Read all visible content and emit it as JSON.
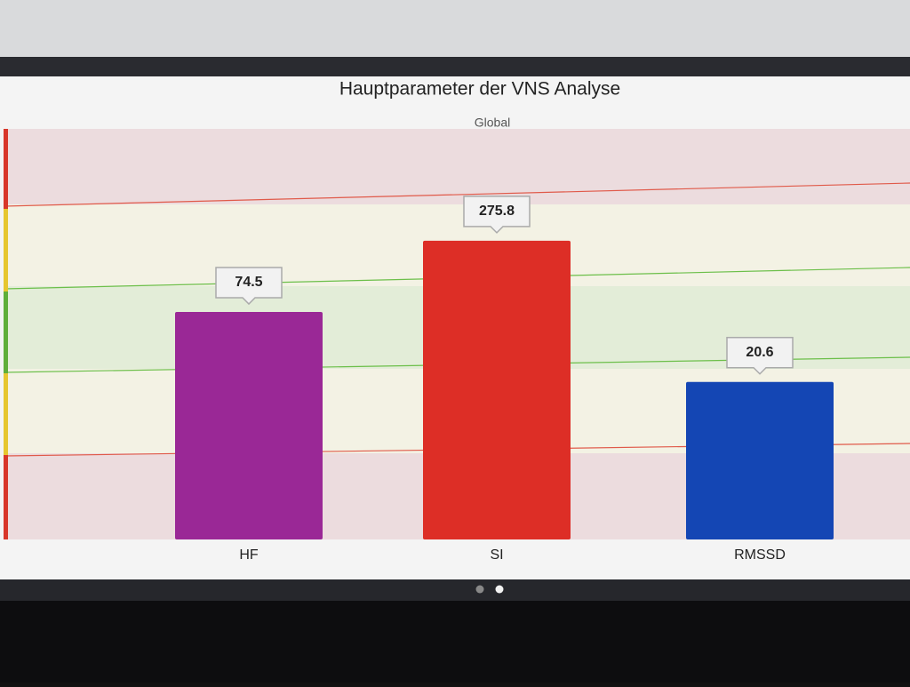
{
  "chart_data": {
    "type": "bar",
    "title": "Hauptparameter der VNS Analyse",
    "subtitle": "Global",
    "categories": [
      "HF",
      "SI",
      "RMSSD"
    ],
    "values": [
      74.5,
      275.8,
      20.6
    ],
    "colors": [
      "#9a2896",
      "#dd2e26",
      "#1446b4"
    ],
    "log_scale": true
  }
}
